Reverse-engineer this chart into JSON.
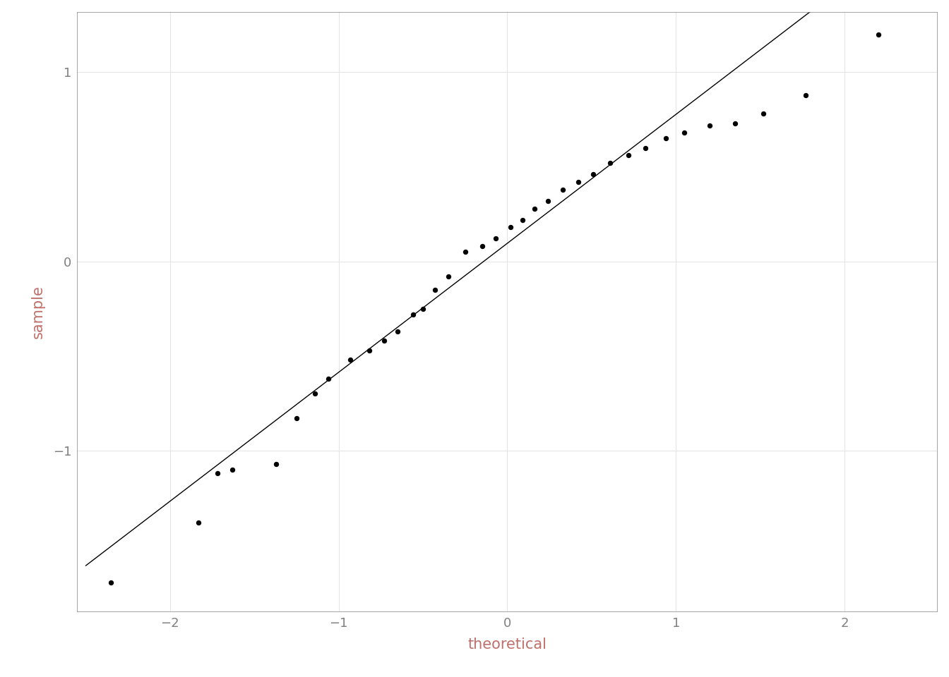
{
  "theoretical": [
    -2.35,
    -1.83,
    -1.72,
    -1.63,
    -1.37,
    -1.25,
    -1.14,
    -1.06,
    -0.93,
    -0.82,
    -0.73,
    -0.65,
    -0.56,
    -0.5,
    -0.43,
    -0.35,
    -0.25,
    -0.15,
    -0.07,
    0.02,
    0.09,
    0.16,
    0.24,
    0.33,
    0.42,
    0.51,
    0.61,
    0.72,
    0.82,
    0.94,
    1.05,
    1.2,
    1.35,
    1.52,
    1.77,
    2.2
  ],
  "sample": [
    -1.7,
    -1.38,
    -1.12,
    -1.1,
    -1.07,
    -0.83,
    -0.7,
    -0.62,
    -0.52,
    -0.47,
    -0.42,
    -0.37,
    -0.28,
    -0.25,
    -0.15,
    -0.08,
    0.05,
    0.08,
    0.12,
    0.18,
    0.22,
    0.28,
    0.32,
    0.38,
    0.42,
    0.46,
    0.52,
    0.56,
    0.6,
    0.65,
    0.68,
    0.72,
    0.73,
    0.78,
    0.88,
    1.2
  ],
  "line_x_start": -2.5,
  "line_x_end": 2.5,
  "xlim": [
    -2.55,
    2.55
  ],
  "ylim": [
    -1.85,
    1.32
  ],
  "xlabel": "theoretical",
  "ylabel": "sample",
  "dot_color": "#000000",
  "line_color": "#000000",
  "bg_color": "#ffffff",
  "panel_bg": "#ffffff",
  "grid_color": "#e5e5e5",
  "label_color": "#c0706a",
  "tick_color": "#808080",
  "border_color": "#808080",
  "dot_size": 28,
  "line_width": 1.0,
  "xlabel_fontsize": 15,
  "ylabel_fontsize": 15,
  "tick_fontsize": 13,
  "xticks": [
    -2,
    -1,
    0,
    1,
    2
  ],
  "yticks": [
    -1,
    0,
    1
  ]
}
